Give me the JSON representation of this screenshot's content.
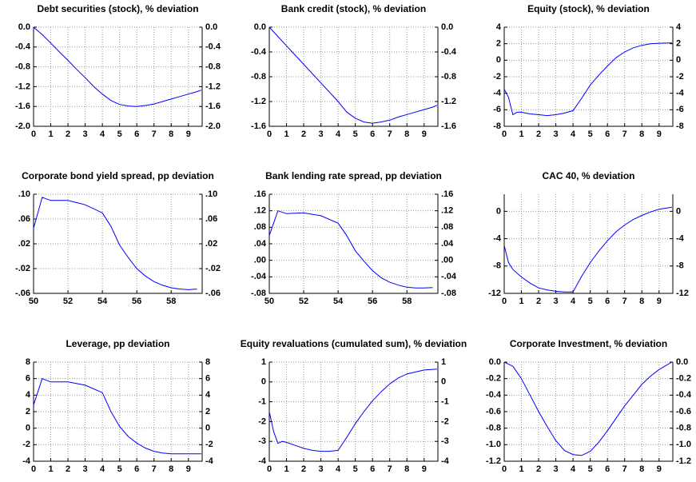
{
  "chart_data": [
    {
      "type": "line",
      "title": "Debt securities (stock), % deviation",
      "color": "#0000ff",
      "grid": true,
      "x": [
        0,
        0.5,
        1,
        1.5,
        2,
        2.5,
        3,
        3.5,
        4,
        4.5,
        5,
        5.5,
        6,
        6.5,
        7,
        7.5,
        8,
        8.5,
        9,
        9.5,
        9.75
      ],
      "values": [
        0,
        -0.15,
        -0.32,
        -0.5,
        -0.67,
        -0.85,
        -1.02,
        -1.2,
        -1.35,
        -1.48,
        -1.56,
        -1.59,
        -1.6,
        -1.58,
        -1.55,
        -1.5,
        -1.45,
        -1.4,
        -1.35,
        -1.3,
        -1.27
      ],
      "xlim": [
        0,
        9.8
      ],
      "xticks": [
        0,
        1,
        2,
        3,
        4,
        5,
        6,
        7,
        8,
        9
      ],
      "ylim": [
        -2,
        0
      ],
      "yticks": [
        {
          "value": 0,
          "label": "0.0"
        },
        -0.4,
        -0.8,
        -1.2,
        -1.6,
        {
          "value": -2,
          "label": "-2.0"
        }
      ]
    },
    {
      "type": "line",
      "title": "Bank credit (stock), % deviation",
      "color": "#0000ff",
      "grid": true,
      "x": [
        0,
        0.5,
        1,
        1.5,
        2,
        2.5,
        3,
        3.5,
        4,
        4.5,
        5,
        5.5,
        6,
        6.5,
        7,
        7.5,
        8,
        8.5,
        9,
        9.5,
        9.75
      ],
      "values": [
        0,
        -0.15,
        -0.3,
        -0.45,
        -0.6,
        -0.75,
        -0.9,
        -1.05,
        -1.2,
        -1.37,
        -1.47,
        -1.53,
        -1.55,
        -1.53,
        -1.5,
        -1.45,
        -1.41,
        -1.37,
        -1.33,
        -1.29,
        -1.26
      ],
      "xlim": [
        0,
        9.8
      ],
      "xticks": [
        0,
        1,
        2,
        3,
        4,
        5,
        6,
        7,
        8,
        9
      ],
      "ylim": [
        -1.6,
        0
      ],
      "yticks": [
        {
          "value": 0,
          "label": "0.0"
        },
        -0.4,
        -0.8,
        -1.2,
        -1.6
      ]
    },
    {
      "type": "line",
      "title": "Equity (stock), % deviation",
      "color": "#0000ff",
      "grid": true,
      "x": [
        0,
        0.25,
        0.5,
        0.75,
        1,
        1.5,
        2,
        2.5,
        3,
        3.5,
        4,
        4.5,
        5,
        5.5,
        6,
        6.5,
        7,
        7.5,
        8,
        8.5,
        9,
        9.75
      ],
      "values": [
        -3.5,
        -4.5,
        -6.6,
        -6.3,
        -6.3,
        -6.5,
        -6.6,
        -6.7,
        -6.6,
        -6.4,
        -6.1,
        -4.6,
        -3,
        -1.8,
        -0.7,
        0.3,
        1,
        1.5,
        1.8,
        2,
        2.05,
        2.1
      ],
      "xlim": [
        0,
        9.8
      ],
      "xticks": [
        0,
        1,
        2,
        3,
        4,
        5,
        6,
        7,
        8,
        9
      ],
      "ylim": [
        -8,
        4
      ],
      "yticks": [
        4,
        2,
        0,
        -2,
        -4,
        -6,
        -8
      ]
    },
    {
      "type": "line",
      "title": "Corporate bond yield spread, pp deviation",
      "color": "#0000ff",
      "grid": true,
      "x": [
        50,
        50.5,
        51,
        52,
        53,
        54,
        54.5,
        55,
        55.5,
        56,
        56.5,
        57,
        57.5,
        58,
        58.5,
        59,
        59.5
      ],
      "values": [
        0.045,
        0.095,
        0.09,
        0.09,
        0.083,
        0.07,
        0.048,
        0.018,
        -0.002,
        -0.02,
        -0.032,
        -0.041,
        -0.047,
        -0.051,
        -0.053,
        -0.054,
        -0.053
      ],
      "xlim": [
        50,
        59.8
      ],
      "xticks": [
        50,
        52,
        54,
        56,
        58
      ],
      "ylim": [
        -0.06,
        0.1
      ],
      "yticks": [
        {
          "value": 0.1,
          "label": ".10"
        },
        {
          "value": 0.06,
          "label": ".06"
        },
        {
          "value": 0.02,
          "label": ".02"
        },
        {
          "value": -0.02,
          "label": "-.02"
        },
        {
          "value": -0.06,
          "label": "-.06"
        }
      ]
    },
    {
      "type": "line",
      "title": "Bank lending rate spread, pp deviation",
      "color": "#0000ff",
      "grid": true,
      "x": [
        50,
        50.5,
        51,
        52,
        53,
        54,
        54.5,
        55,
        55.5,
        56,
        56.5,
        57,
        57.5,
        58,
        58.5,
        59,
        59.5
      ],
      "values": [
        0.06,
        0.12,
        0.113,
        0.115,
        0.108,
        0.09,
        0.06,
        0.023,
        -0.002,
        -0.025,
        -0.042,
        -0.053,
        -0.06,
        -0.065,
        -0.067,
        -0.067,
        -0.066
      ],
      "xlim": [
        50,
        59.8
      ],
      "xticks": [
        50,
        52,
        54,
        56,
        58
      ],
      "ylim": [
        -0.08,
        0.16
      ],
      "yticks": [
        {
          "value": 0.16,
          "label": ".16"
        },
        {
          "value": 0.12,
          "label": ".12"
        },
        {
          "value": 0.08,
          "label": ".08"
        },
        {
          "value": 0.04,
          "label": ".04"
        },
        {
          "value": 0,
          "label": ".00"
        },
        {
          "value": -0.04,
          "label": "-.04"
        },
        {
          "value": -0.08,
          "label": "-.08"
        }
      ]
    },
    {
      "type": "line",
      "title": "CAC 40, % deviation",
      "color": "#0000ff",
      "grid": true,
      "x": [
        0,
        0.25,
        0.5,
        1,
        1.5,
        2,
        2.5,
        3,
        3.5,
        4,
        4.5,
        5,
        5.5,
        6,
        6.5,
        7,
        7.5,
        8,
        8.5,
        9,
        9.75
      ],
      "values": [
        -5,
        -7.5,
        -8.5,
        -9.6,
        -10.5,
        -11.2,
        -11.5,
        -11.7,
        -11.8,
        -11.8,
        -9.5,
        -7.5,
        -5.8,
        -4.3,
        -3,
        -2,
        -1.2,
        -0.6,
        -0.1,
        0.3,
        0.6
      ],
      "xlim": [
        0,
        9.8
      ],
      "xticks": [
        0,
        1,
        2,
        3,
        4,
        5,
        6,
        7,
        8,
        9
      ],
      "ylim": [
        -12,
        2.5
      ],
      "yticks": [
        0,
        -4,
        -8,
        -12
      ]
    },
    {
      "type": "line",
      "title": "Leverage, pp deviation",
      "color": "#0000ff",
      "grid": true,
      "x": [
        0,
        0.5,
        1,
        2,
        3,
        4,
        4.5,
        5,
        5.5,
        6,
        6.5,
        7,
        7.5,
        8,
        9,
        9.75
      ],
      "values": [
        2.8,
        6,
        5.6,
        5.6,
        5.2,
        4.3,
        2,
        0.2,
        -1,
        -1.8,
        -2.4,
        -2.8,
        -3,
        -3.1,
        -3.1,
        -3.1
      ],
      "xlim": [
        0,
        9.8
      ],
      "xticks": [
        0,
        1,
        2,
        3,
        4,
        5,
        6,
        7,
        8,
        9
      ],
      "ylim": [
        -4,
        8
      ],
      "yticks": [
        8,
        6,
        4,
        2,
        0,
        -2,
        -4
      ]
    },
    {
      "type": "line",
      "title": "Equity revaluations (cumulated sum), % deviation",
      "color": "#0000ff",
      "grid": true,
      "x": [
        0,
        0.25,
        0.5,
        0.75,
        1,
        1.5,
        2,
        2.5,
        3,
        3.5,
        4,
        4.5,
        5,
        5.5,
        6,
        6.5,
        7,
        7.5,
        8,
        8.5,
        9,
        9.75
      ],
      "values": [
        -1.5,
        -2.5,
        -3.1,
        -3,
        -3.05,
        -3.2,
        -3.35,
        -3.45,
        -3.5,
        -3.5,
        -3.45,
        -2.8,
        -2.1,
        -1.5,
        -0.95,
        -0.5,
        -0.1,
        0.2,
        0.4,
        0.5,
        0.6,
        0.65
      ],
      "xlim": [
        0,
        9.8
      ],
      "xticks": [
        0,
        1,
        2,
        3,
        4,
        5,
        6,
        7,
        8,
        9
      ],
      "ylim": [
        -4,
        1
      ],
      "yticks": [
        1,
        0,
        -1,
        -2,
        -3,
        -4
      ]
    },
    {
      "type": "line",
      "title": "Corporate Investment, % deviation",
      "color": "#0000ff",
      "grid": true,
      "x": [
        0,
        0.5,
        1,
        1.5,
        2,
        2.5,
        3,
        3.5,
        4,
        4.5,
        5,
        5.5,
        6,
        6.5,
        7,
        7.5,
        8,
        8.5,
        9,
        9.5,
        9.75
      ],
      "values": [
        0,
        -0.05,
        -0.2,
        -0.4,
        -0.6,
        -0.78,
        -0.95,
        -1.07,
        -1.12,
        -1.13,
        -1.08,
        -0.97,
        -0.83,
        -0.68,
        -0.53,
        -0.4,
        -0.27,
        -0.17,
        -0.09,
        -0.03,
        0
      ],
      "xlim": [
        0,
        9.8
      ],
      "xticks": [
        0,
        1,
        2,
        3,
        4,
        5,
        6,
        7,
        8,
        9
      ],
      "ylim": [
        -1.2,
        0
      ],
      "yticks": [
        {
          "value": 0,
          "label": "0.0"
        },
        -0.2,
        -0.4,
        -0.6,
        -0.8,
        {
          "value": -1,
          "label": "-1.0"
        },
        -1.2
      ]
    }
  ]
}
